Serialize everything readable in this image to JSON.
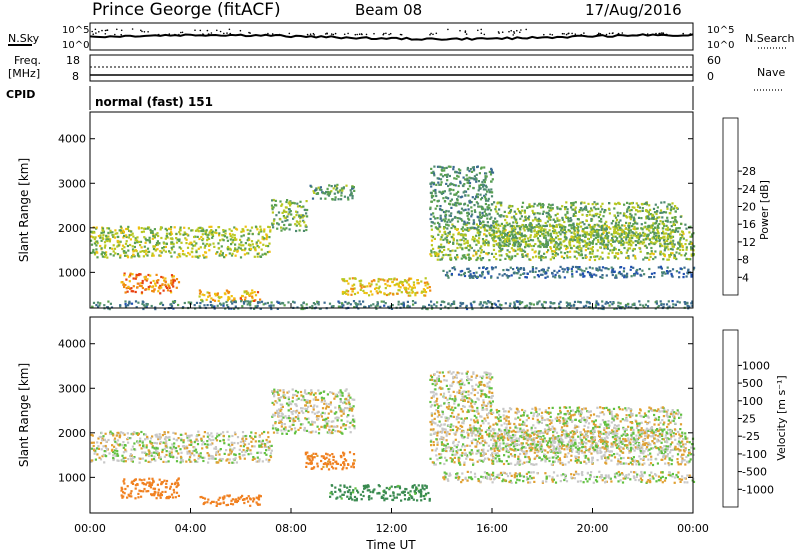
{
  "header": {
    "station": "Prince George (fitACF)",
    "beam": "Beam 08",
    "date": "17/Aug/2016"
  },
  "top_panels": {
    "nsky_label": "N.Sky",
    "nsearch_label": "N.Search",
    "noise_ticks": [
      "10^5",
      "10^0"
    ],
    "freq_label_line1": "Freq.",
    "freq_label_line2": "[MHz]",
    "freq_ticks": [
      "18",
      "8"
    ],
    "nave_label": "Nave",
    "nave_ticks": [
      "60",
      "0"
    ],
    "cpid_label": "CPID",
    "cpid_value": "normal (fast) 151"
  },
  "colors": {
    "power_scale": [
      "#1030e0",
      "#2050b0",
      "#3a6a90",
      "#4e8a70",
      "#5aa050",
      "#b8c820",
      "#f0c010",
      "#f08a10",
      "#e84010",
      "#d01010"
    ],
    "velocity_scale": [
      "#1040c0",
      "#2060a0",
      "#3a8a50",
      "#60c040",
      "#c8c8c8",
      "#c8c8c8",
      "#e0a030",
      "#f08020",
      "#e84a10",
      "#d01010"
    ],
    "noise_trace": "#000000"
  },
  "chart_data": [
    {
      "type": "heatmap",
      "name": "power",
      "ylabel": "Slant Range [km]",
      "ylim": [
        200,
        4600
      ],
      "xlim": [
        "00:00",
        "24:00"
      ],
      "colorbar_label": "Power [dB]",
      "colorbar_ticks": [
        "4",
        "8",
        "12",
        "16",
        "20",
        "24",
        "28"
      ],
      "colorbar_range": [
        0,
        32
      ],
      "yticks": [
        "1000",
        "2000",
        "3000",
        "4000"
      ],
      "regions": [
        {
          "t_start": 0.0,
          "t_end": 7.2,
          "range_start": 1350,
          "range_end": 2050,
          "power": 17
        },
        {
          "t_start": 7.2,
          "t_end": 8.6,
          "range_start": 1950,
          "range_end": 2650,
          "power": 15
        },
        {
          "t_start": 8.6,
          "t_end": 10.5,
          "range_start": 2650,
          "range_end": 3000,
          "power": 13
        },
        {
          "t_start": 1.2,
          "t_end": 3.5,
          "range_start": 550,
          "range_end": 1000,
          "power": 25
        },
        {
          "t_start": 4.2,
          "t_end": 6.8,
          "range_start": 380,
          "range_end": 620,
          "power": 22
        },
        {
          "t_start": 10.0,
          "t_end": 13.5,
          "range_start": 500,
          "range_end": 900,
          "power": 20
        },
        {
          "t_start": 13.5,
          "t_end": 24.0,
          "range_start": 1300,
          "range_end": 2100,
          "power": 16
        },
        {
          "t_start": 13.5,
          "t_end": 16.0,
          "range_start": 2000,
          "range_end": 3400,
          "power": 12
        },
        {
          "t_start": 14.0,
          "t_end": 24.0,
          "range_start": 900,
          "range_end": 1150,
          "power": 8
        },
        {
          "t_start": 16.0,
          "t_end": 23.5,
          "range_start": 1600,
          "range_end": 2600,
          "power": 15
        },
        {
          "t_start": 0.0,
          "t_end": 24.0,
          "range_start": 200,
          "range_end": 380,
          "power": 10
        }
      ]
    },
    {
      "type": "heatmap",
      "name": "velocity",
      "xlabel": "Time UT",
      "ylabel": "Slant Range [km]",
      "ylim": [
        200,
        4600
      ],
      "xlim": [
        "00:00",
        "24:00"
      ],
      "colorbar_label": "Velocity [m s⁻¹]",
      "colorbar_ticks": [
        "-1000",
        "-500",
        "-100",
        "-25",
        "25",
        "100",
        "500",
        "1000"
      ],
      "xticks": [
        "00:00",
        "04:00",
        "08:00",
        "12:00",
        "16:00",
        "20:00",
        "00:00"
      ],
      "yticks": [
        "1000",
        "2000",
        "3000",
        "4000"
      ],
      "regions": [
        {
          "t_start": 0.0,
          "t_end": 7.2,
          "range_start": 1350,
          "range_end": 2050,
          "velocity": 0
        },
        {
          "t_start": 7.2,
          "t_end": 10.5,
          "range_start": 2000,
          "range_end": 3000,
          "velocity": 0
        },
        {
          "t_start": 1.2,
          "t_end": 3.5,
          "range_start": 550,
          "range_end": 1000,
          "velocity": -300
        },
        {
          "t_start": 4.2,
          "t_end": 6.8,
          "range_start": 380,
          "range_end": 620,
          "velocity": -200
        },
        {
          "t_start": 9.5,
          "t_end": 13.5,
          "range_start": 500,
          "range_end": 850,
          "velocity": 150
        },
        {
          "t_start": 13.5,
          "t_end": 24.0,
          "range_start": 1300,
          "range_end": 2100,
          "velocity": 0
        },
        {
          "t_start": 13.5,
          "t_end": 16.0,
          "range_start": 2000,
          "range_end": 3400,
          "velocity": 0
        },
        {
          "t_start": 16.0,
          "t_end": 23.5,
          "range_start": 1600,
          "range_end": 2600,
          "velocity": 0
        },
        {
          "t_start": 14.0,
          "t_end": 24.0,
          "range_start": 900,
          "range_end": 1150,
          "velocity": 0
        },
        {
          "t_start": 8.5,
          "t_end": 10.5,
          "range_start": 1200,
          "range_end": 1600,
          "velocity": -150
        }
      ]
    }
  ]
}
